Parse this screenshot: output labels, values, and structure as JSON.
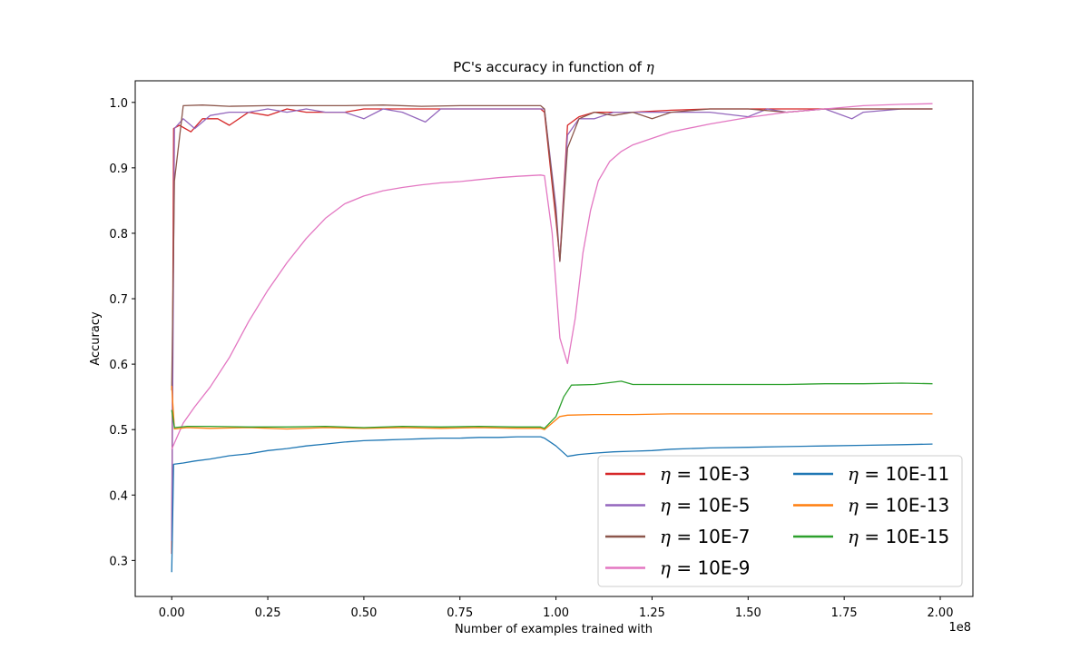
{
  "chart_data": {
    "type": "line",
    "title_prefix": "PC's accuracy in function of ",
    "title_symbol": "η",
    "xlabel": "Number of examples trained with",
    "ylabel": "Accuracy",
    "x_offset_label": "1e8",
    "xlim": [
      -0.095,
      2.085
    ],
    "ylim": [
      0.245,
      1.033
    ],
    "x_ticks": [
      0.0,
      0.25,
      0.5,
      0.75,
      1.0,
      1.25,
      1.5,
      1.75,
      2.0
    ],
    "x_tick_labels": [
      "0.00",
      "0.25",
      "0.50",
      "0.75",
      "1.00",
      "1.25",
      "1.50",
      "1.75",
      "2.00"
    ],
    "y_ticks": [
      0.3,
      0.4,
      0.5,
      0.6,
      0.7,
      0.8,
      0.9,
      1.0
    ],
    "y_tick_labels": [
      "0.3",
      "0.4",
      "0.5",
      "0.6",
      "0.7",
      "0.8",
      "0.9",
      "1.0"
    ],
    "legend_position": "lower-right",
    "legend_prefix": "η = ",
    "series": [
      {
        "name": "10E-3",
        "color": "#d62728",
        "points": [
          [
            0,
            0.31
          ],
          [
            0.005,
            0.96
          ],
          [
            0.02,
            0.965
          ],
          [
            0.05,
            0.955
          ],
          [
            0.08,
            0.975
          ],
          [
            0.12,
            0.975
          ],
          [
            0.15,
            0.965
          ],
          [
            0.2,
            0.985
          ],
          [
            0.25,
            0.98
          ],
          [
            0.3,
            0.99
          ],
          [
            0.35,
            0.985
          ],
          [
            0.4,
            0.985
          ],
          [
            0.45,
            0.985
          ],
          [
            0.5,
            0.99
          ],
          [
            0.6,
            0.99
          ],
          [
            0.7,
            0.99
          ],
          [
            0.8,
            0.99
          ],
          [
            0.9,
            0.99
          ],
          [
            0.96,
            0.99
          ],
          [
            0.97,
            0.985
          ],
          [
            1.0,
            0.82
          ],
          [
            1.01,
            0.76
          ],
          [
            1.03,
            0.965
          ],
          [
            1.06,
            0.978
          ],
          [
            1.1,
            0.985
          ],
          [
            1.15,
            0.985
          ],
          [
            1.2,
            0.985
          ],
          [
            1.3,
            0.988
          ],
          [
            1.4,
            0.99
          ],
          [
            1.5,
            0.99
          ],
          [
            1.6,
            0.99
          ],
          [
            1.7,
            0.99
          ],
          [
            1.8,
            0.99
          ],
          [
            1.9,
            0.99
          ],
          [
            1.98,
            0.99
          ]
        ]
      },
      {
        "name": "10E-5",
        "color": "#9467bd",
        "points": [
          [
            0,
            0.33
          ],
          [
            0.007,
            0.96
          ],
          [
            0.03,
            0.975
          ],
          [
            0.06,
            0.96
          ],
          [
            0.1,
            0.98
          ],
          [
            0.15,
            0.985
          ],
          [
            0.2,
            0.985
          ],
          [
            0.25,
            0.99
          ],
          [
            0.3,
            0.985
          ],
          [
            0.35,
            0.99
          ],
          [
            0.4,
            0.985
          ],
          [
            0.45,
            0.985
          ],
          [
            0.5,
            0.975
          ],
          [
            0.55,
            0.99
          ],
          [
            0.6,
            0.985
          ],
          [
            0.66,
            0.97
          ],
          [
            0.7,
            0.99
          ],
          [
            0.8,
            0.99
          ],
          [
            0.9,
            0.99
          ],
          [
            0.96,
            0.99
          ],
          [
            0.97,
            0.99
          ],
          [
            1.0,
            0.84
          ],
          [
            1.01,
            0.757
          ],
          [
            1.03,
            0.95
          ],
          [
            1.06,
            0.975
          ],
          [
            1.1,
            0.975
          ],
          [
            1.15,
            0.985
          ],
          [
            1.2,
            0.985
          ],
          [
            1.3,
            0.985
          ],
          [
            1.4,
            0.985
          ],
          [
            1.5,
            0.978
          ],
          [
            1.55,
            0.99
          ],
          [
            1.6,
            0.985
          ],
          [
            1.7,
            0.99
          ],
          [
            1.77,
            0.975
          ],
          [
            1.8,
            0.985
          ],
          [
            1.9,
            0.99
          ],
          [
            1.98,
            0.99
          ]
        ]
      },
      {
        "name": "10E-7",
        "color": "#8c564b",
        "points": [
          [
            0,
            0.56
          ],
          [
            0.007,
            0.88
          ],
          [
            0.03,
            0.995
          ],
          [
            0.08,
            0.996
          ],
          [
            0.15,
            0.994
          ],
          [
            0.25,
            0.995
          ],
          [
            0.35,
            0.995
          ],
          [
            0.45,
            0.995
          ],
          [
            0.55,
            0.996
          ],
          [
            0.65,
            0.994
          ],
          [
            0.75,
            0.995
          ],
          [
            0.85,
            0.995
          ],
          [
            0.96,
            0.995
          ],
          [
            0.97,
            0.99
          ],
          [
            1.0,
            0.83
          ],
          [
            1.01,
            0.757
          ],
          [
            1.03,
            0.93
          ],
          [
            1.06,
            0.975
          ],
          [
            1.1,
            0.985
          ],
          [
            1.15,
            0.98
          ],
          [
            1.2,
            0.985
          ],
          [
            1.25,
            0.975
          ],
          [
            1.3,
            0.985
          ],
          [
            1.4,
            0.99
          ],
          [
            1.5,
            0.99
          ],
          [
            1.6,
            0.985
          ],
          [
            1.7,
            0.99
          ],
          [
            1.8,
            0.99
          ],
          [
            1.9,
            0.99
          ],
          [
            1.98,
            0.99
          ]
        ]
      },
      {
        "name": "10E-9",
        "color": "#e377c2",
        "points": [
          [
            0,
            0.47
          ],
          [
            0.03,
            0.51
          ],
          [
            0.06,
            0.535
          ],
          [
            0.1,
            0.565
          ],
          [
            0.15,
            0.61
          ],
          [
            0.2,
            0.665
          ],
          [
            0.25,
            0.713
          ],
          [
            0.3,
            0.755
          ],
          [
            0.35,
            0.792
          ],
          [
            0.4,
            0.823
          ],
          [
            0.45,
            0.845
          ],
          [
            0.5,
            0.857
          ],
          [
            0.55,
            0.865
          ],
          [
            0.6,
            0.87
          ],
          [
            0.65,
            0.874
          ],
          [
            0.7,
            0.877
          ],
          [
            0.75,
            0.879
          ],
          [
            0.8,
            0.882
          ],
          [
            0.85,
            0.885
          ],
          [
            0.9,
            0.887
          ],
          [
            0.96,
            0.889
          ],
          [
            0.97,
            0.888
          ],
          [
            0.99,
            0.8
          ],
          [
            1.01,
            0.64
          ],
          [
            1.03,
            0.601
          ],
          [
            1.05,
            0.67
          ],
          [
            1.07,
            0.77
          ],
          [
            1.09,
            0.835
          ],
          [
            1.11,
            0.88
          ],
          [
            1.14,
            0.91
          ],
          [
            1.17,
            0.925
          ],
          [
            1.2,
            0.935
          ],
          [
            1.25,
            0.945
          ],
          [
            1.3,
            0.955
          ],
          [
            1.4,
            0.967
          ],
          [
            1.5,
            0.977
          ],
          [
            1.6,
            0.985
          ],
          [
            1.7,
            0.99
          ],
          [
            1.8,
            0.995
          ],
          [
            1.9,
            0.997
          ],
          [
            1.98,
            0.998
          ]
        ]
      },
      {
        "name": "10E-11",
        "color": "#1f77b4",
        "points": [
          [
            0,
            0.282
          ],
          [
            0.005,
            0.447
          ],
          [
            0.03,
            0.449
          ],
          [
            0.06,
            0.452
          ],
          [
            0.1,
            0.455
          ],
          [
            0.15,
            0.46
          ],
          [
            0.2,
            0.463
          ],
          [
            0.25,
            0.468
          ],
          [
            0.3,
            0.471
          ],
          [
            0.35,
            0.475
          ],
          [
            0.4,
            0.478
          ],
          [
            0.45,
            0.481
          ],
          [
            0.5,
            0.483
          ],
          [
            0.55,
            0.484
          ],
          [
            0.6,
            0.485
          ],
          [
            0.65,
            0.486
          ],
          [
            0.7,
            0.487
          ],
          [
            0.75,
            0.487
          ],
          [
            0.8,
            0.488
          ],
          [
            0.85,
            0.488
          ],
          [
            0.9,
            0.489
          ],
          [
            0.96,
            0.489
          ],
          [
            0.97,
            0.487
          ],
          [
            1.0,
            0.475
          ],
          [
            1.03,
            0.459
          ],
          [
            1.06,
            0.462
          ],
          [
            1.1,
            0.464
          ],
          [
            1.15,
            0.466
          ],
          [
            1.2,
            0.467
          ],
          [
            1.25,
            0.468
          ],
          [
            1.3,
            0.47
          ],
          [
            1.4,
            0.472
          ],
          [
            1.5,
            0.473
          ],
          [
            1.6,
            0.474
          ],
          [
            1.7,
            0.475
          ],
          [
            1.8,
            0.476
          ],
          [
            1.9,
            0.477
          ],
          [
            1.98,
            0.478
          ]
        ]
      },
      {
        "name": "10E-13",
        "color": "#ff7f0e",
        "points": [
          [
            0,
            0.567
          ],
          [
            0.007,
            0.501
          ],
          [
            0.04,
            0.503
          ],
          [
            0.1,
            0.502
          ],
          [
            0.2,
            0.503
          ],
          [
            0.3,
            0.501
          ],
          [
            0.4,
            0.503
          ],
          [
            0.5,
            0.502
          ],
          [
            0.6,
            0.503
          ],
          [
            0.7,
            0.502
          ],
          [
            0.8,
            0.503
          ],
          [
            0.9,
            0.502
          ],
          [
            0.96,
            0.502
          ],
          [
            0.97,
            0.5
          ],
          [
            0.99,
            0.51
          ],
          [
            1.01,
            0.52
          ],
          [
            1.03,
            0.522
          ],
          [
            1.1,
            0.523
          ],
          [
            1.2,
            0.523
          ],
          [
            1.3,
            0.524
          ],
          [
            1.4,
            0.524
          ],
          [
            1.5,
            0.524
          ],
          [
            1.6,
            0.524
          ],
          [
            1.7,
            0.524
          ],
          [
            1.8,
            0.524
          ],
          [
            1.9,
            0.524
          ],
          [
            1.98,
            0.524
          ]
        ]
      },
      {
        "name": "10E-15",
        "color": "#2ca02c",
        "points": [
          [
            0,
            0.53
          ],
          [
            0.007,
            0.503
          ],
          [
            0.04,
            0.505
          ],
          [
            0.1,
            0.505
          ],
          [
            0.2,
            0.504
          ],
          [
            0.3,
            0.504
          ],
          [
            0.4,
            0.505
          ],
          [
            0.5,
            0.503
          ],
          [
            0.6,
            0.505
          ],
          [
            0.7,
            0.504
          ],
          [
            0.8,
            0.505
          ],
          [
            0.9,
            0.504
          ],
          [
            0.96,
            0.504
          ],
          [
            0.97,
            0.502
          ],
          [
            1.0,
            0.52
          ],
          [
            1.02,
            0.55
          ],
          [
            1.04,
            0.568
          ],
          [
            1.1,
            0.569
          ],
          [
            1.17,
            0.574
          ],
          [
            1.2,
            0.569
          ],
          [
            1.3,
            0.569
          ],
          [
            1.4,
            0.569
          ],
          [
            1.5,
            0.569
          ],
          [
            1.6,
            0.569
          ],
          [
            1.7,
            0.57
          ],
          [
            1.8,
            0.57
          ],
          [
            1.9,
            0.571
          ],
          [
            1.98,
            0.57
          ]
        ]
      }
    ]
  }
}
